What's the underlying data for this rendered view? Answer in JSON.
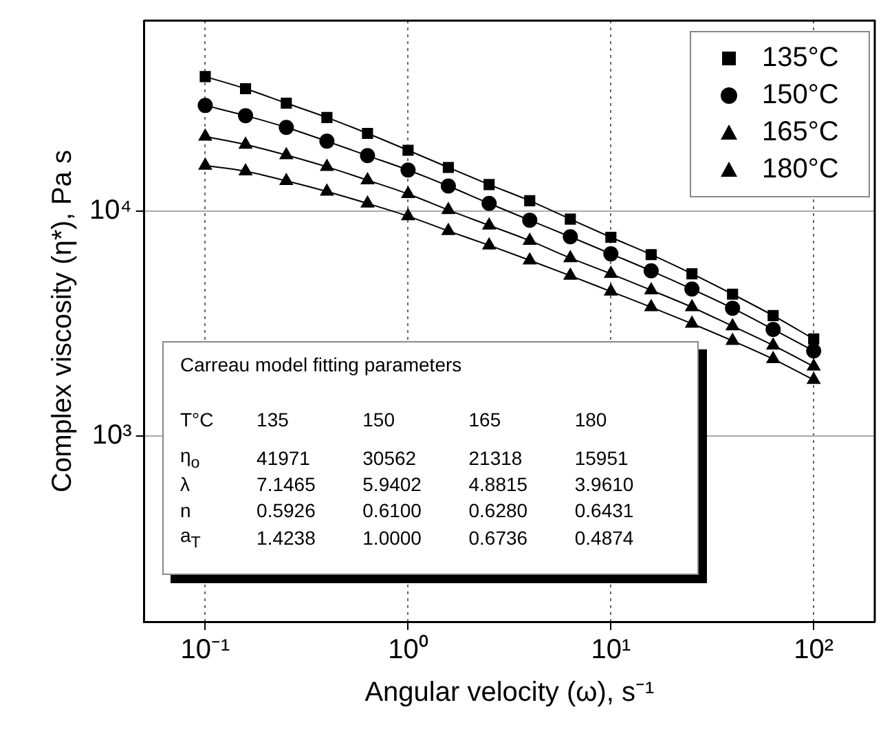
{
  "chart_data": {
    "type": "line",
    "xlabel": "Angular velocity (ω), s⁻¹",
    "ylabel": "Complex viscosity (η*), Pa s",
    "x": [
      0.1,
      0.158,
      0.251,
      0.398,
      0.631,
      1,
      1.58,
      2.51,
      3.98,
      6.31,
      10,
      15.8,
      25.1,
      39.8,
      63.1,
      100
    ],
    "series": [
      {
        "name": "135°C",
        "color": "#000000",
        "marker": "square",
        "values": [
          39500,
          34900,
          30100,
          26000,
          22100,
          18600,
          15600,
          13100,
          11100,
          9200,
          7640,
          6400,
          5260,
          4270,
          3430,
          2700
        ]
      },
      {
        "name": "150°C",
        "color": "#000000",
        "marker": "circle",
        "values": [
          29400,
          26500,
          23500,
          20400,
          17600,
          15200,
          12900,
          10800,
          9100,
          7680,
          6450,
          5420,
          4500,
          3700,
          2980,
          2390
        ]
      },
      {
        "name": "165°C",
        "color": "#000000",
        "marker": "triangle",
        "values": [
          21400,
          19700,
          17700,
          15700,
          13700,
          11900,
          10100,
          8630,
          7380,
          6180,
          5260,
          4450,
          3740,
          3080,
          2530,
          2040
        ]
      },
      {
        "name": "180°C",
        "color": "#000000",
        "marker": "triangle",
        "values": [
          15900,
          15000,
          13600,
          12200,
          10800,
          9480,
          8150,
          7040,
          6040,
          5160,
          4390,
          3740,
          3160,
          2650,
          2200,
          1780
        ]
      }
    ],
    "log": "xy",
    "xlim": [
      0.05,
      200
    ],
    "ylim": [
      150,
      70000
    ],
    "xticks": [
      {
        "value": 0.1,
        "label": "10⁻¹"
      },
      {
        "value": 1,
        "label": "10⁰"
      },
      {
        "value": 10,
        "label": "10¹"
      },
      {
        "value": 100,
        "label": "10²"
      }
    ],
    "yticks": [
      {
        "value": 1000,
        "label": "10³"
      },
      {
        "value": 10000,
        "label": "10⁴"
      }
    ],
    "grid": true,
    "legend": "top right",
    "line_style": "solid",
    "annotations": [
      "Carreau model fitting parameters",
      "T°C 135 150 165 180",
      "η$_{o}$ 41971 30562 21318 15951",
      "λ 7.1465 5.9402 4.8815 3.9610",
      "n 0.5926 0.6100 0.6280 0.6431",
      "a$_{T}$ 1.4238 1.0000 0.6736 0.4874"
    ]
  }
}
